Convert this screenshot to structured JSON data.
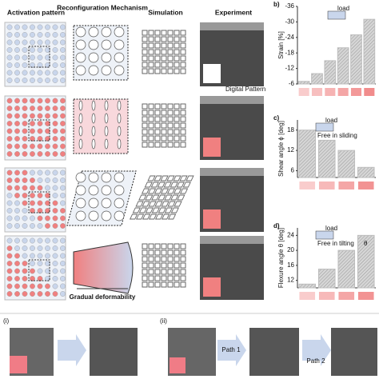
{
  "figure": {
    "headers": [
      "Activation pattern",
      "Reconfiguration Mechanism",
      "Simulation",
      "Experiment"
    ],
    "digital_pattern": "Digital Pattern",
    "gradual": "Gradual deformability",
    "bottom": {
      "label_i": "(i)",
      "label_ii": "(ii)",
      "path1": "Path 1",
      "path2": "Path 2"
    }
  },
  "chart_data": [
    {
      "type": "bar",
      "panel": "b)",
      "ylabel": "Strain [%]",
      "categories": [
        null,
        null,
        null,
        null,
        null,
        null
      ],
      "values": [
        -7,
        -10,
        -15,
        -20,
        -25,
        -31
      ],
      "color": "#bdbdbd",
      "ylim": [
        -6,
        -36
      ],
      "yticks": [
        -36,
        -30,
        -24,
        -18,
        -12,
        -6
      ],
      "annotations": [
        "load"
      ]
    },
    {
      "type": "bar",
      "panel": "c)",
      "ylabel": "Shear angle ϕ [deg]",
      "categories": [
        null,
        null,
        null,
        null
      ],
      "values": [
        18,
        15,
        12,
        7
      ],
      "color": "#bdbdbd",
      "ylim": [
        4,
        21
      ],
      "yticks": [
        6,
        12,
        18
      ],
      "annotations": [
        "load",
        "Free in sliding"
      ]
    },
    {
      "type": "bar",
      "panel": "d)",
      "ylabel": "Flexure angle θ [deg]",
      "categories": [
        null,
        null,
        null,
        null
      ],
      "values": [
        11,
        15,
        20,
        24
      ],
      "color": "#bdbdbd",
      "ylim": [
        10,
        26
      ],
      "yticks": [
        12,
        16,
        20,
        24
      ],
      "annotations": [
        "load",
        "Free in tilting",
        "θ"
      ]
    }
  ]
}
